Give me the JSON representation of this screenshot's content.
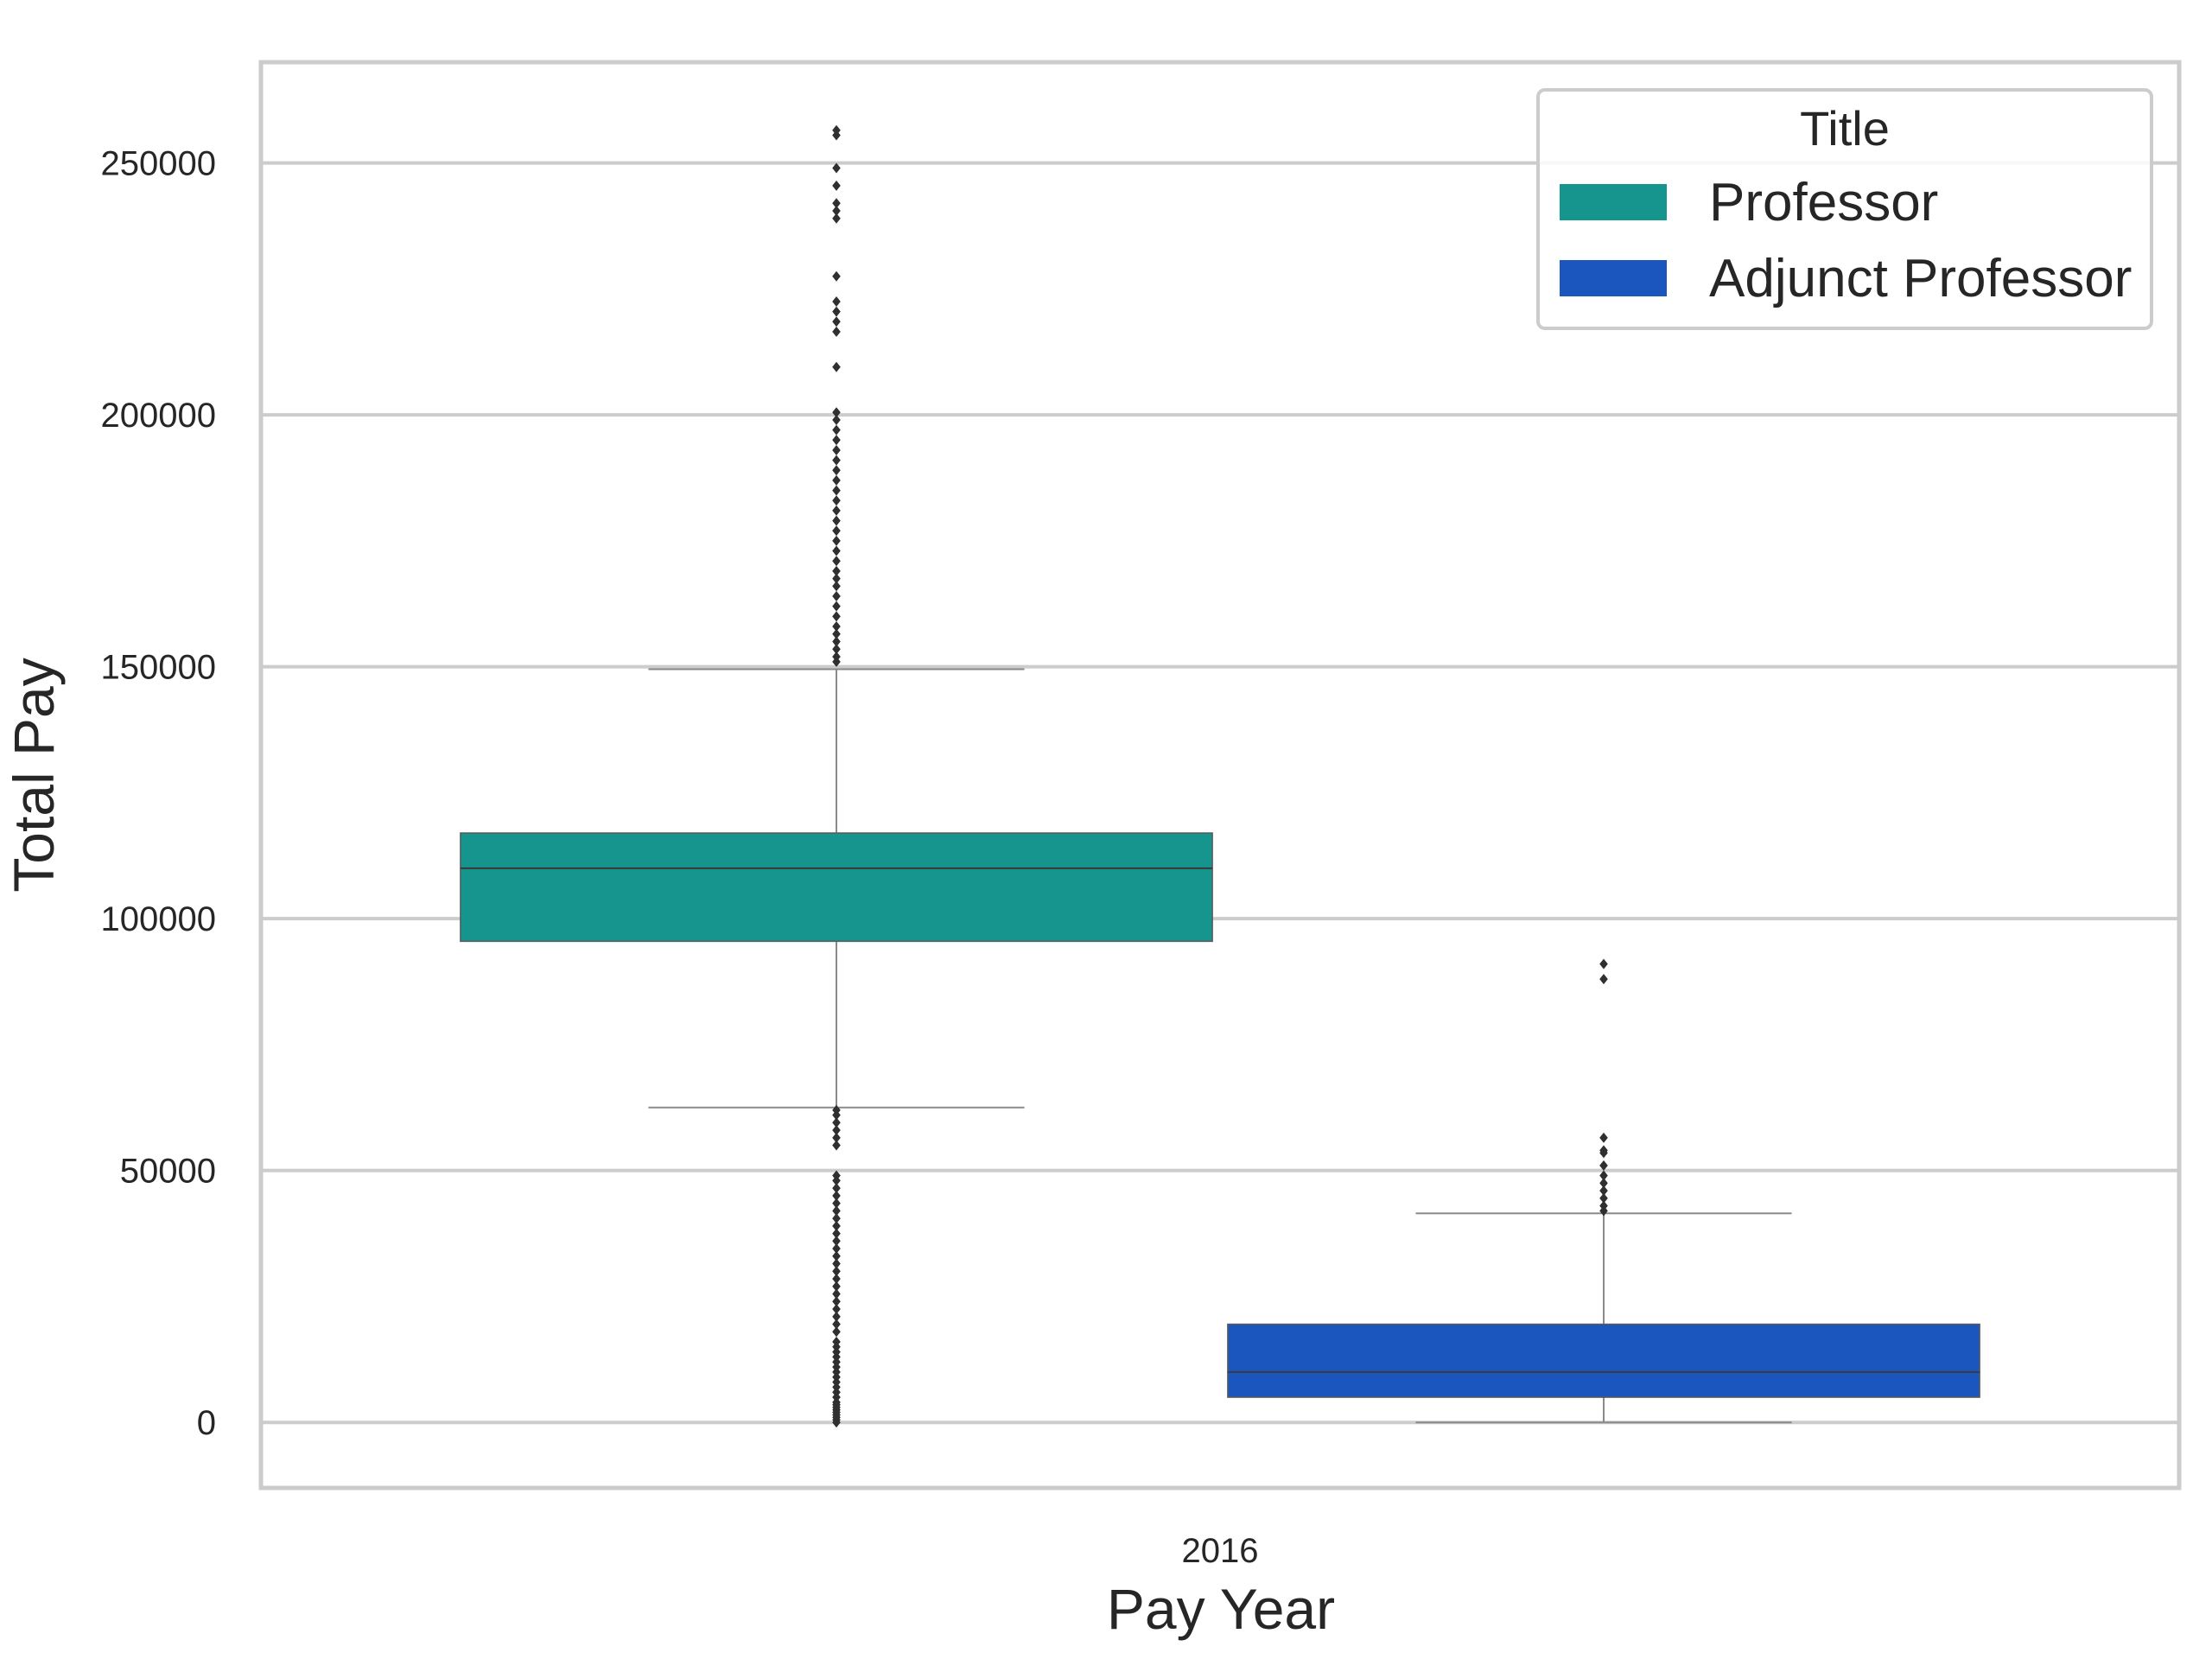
{
  "chart_data": {
    "type": "box",
    "xlabel": "Pay Year",
    "ylabel": "Total Pay",
    "categories": [
      "2016"
    ],
    "ylim": [
      -13000,
      270000
    ],
    "yticks": [
      0,
      50000,
      100000,
      150000,
      200000,
      250000
    ],
    "grid": true,
    "legend": {
      "title": "Title",
      "placement": "upper right",
      "entries": [
        {
          "label": "Professor",
          "color": "#16958f"
        },
        {
          "label": "Adjunct Professor",
          "color": "#1a56bd"
        }
      ]
    },
    "series": [
      {
        "name": "Professor",
        "color": "#16958f",
        "category": "2016",
        "whisker_low": 62500,
        "q1": 95500,
        "median": 110000,
        "q3": 117000,
        "whisker_high": 149500,
        "outliers": [
          0,
          500,
          1000,
          1500,
          2000,
          2500,
          3000,
          3500,
          4000,
          5000,
          6000,
          7000,
          8000,
          9000,
          10000,
          11000,
          12000,
          13000,
          14000,
          15000,
          16000,
          18000,
          19500,
          21000,
          22500,
          24000,
          25500,
          27000,
          28500,
          30000,
          31500,
          33000,
          34500,
          36000,
          37500,
          39000,
          40500,
          42000,
          43500,
          45000,
          46500,
          48000,
          49000,
          55000,
          56500,
          58000,
          59500,
          61000,
          62000,
          151000,
          152000,
          153500,
          155000,
          156500,
          158000,
          160000,
          162000,
          164000,
          166000,
          167500,
          169000,
          171000,
          173000,
          175000,
          177000,
          179000,
          181000,
          183000,
          185000,
          187000,
          189000,
          191000,
          193000,
          195000,
          197000,
          199000,
          200500,
          209500,
          216500,
          218500,
          220500,
          222500,
          227500,
          239000,
          240500,
          242000,
          245500,
          249000,
          255500,
          256500
        ]
      },
      {
        "name": "Adjunct Professor",
        "color": "#1a56bd",
        "category": "2016",
        "whisker_low": 0,
        "q1": 5000,
        "median": 10000,
        "q3": 19500,
        "whisker_high": 41500,
        "outliers": [
          42000,
          43000,
          44500,
          46000,
          47500,
          49000,
          51000,
          53500,
          54000,
          56500,
          88000,
          91000
        ]
      }
    ]
  }
}
